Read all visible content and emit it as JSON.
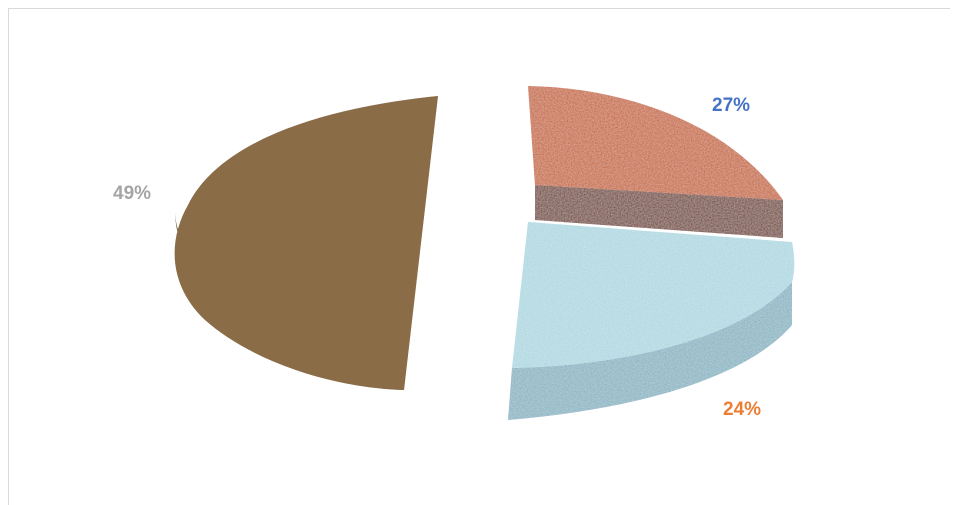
{
  "chart_data": {
    "type": "pie",
    "style": "3d-exploded",
    "legend": "none",
    "slices": [
      {
        "label": "27%",
        "value": 27,
        "color": "#c55a11",
        "side_color": "#6b2a05",
        "label_color": "#4472c4"
      },
      {
        "label": "24%",
        "value": 24,
        "color": "#a9d6e0",
        "side_color": "#7fb0c0",
        "label_color": "#ed7d31"
      },
      {
        "label": "49%",
        "value": 49,
        "color": "#8b6a45",
        "side_color": "#6b4f30",
        "label_color": "#a5a5a5"
      }
    ]
  }
}
